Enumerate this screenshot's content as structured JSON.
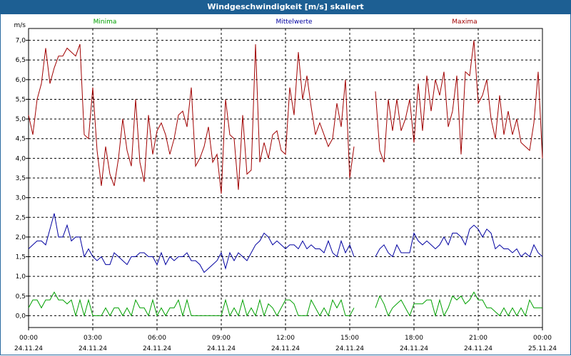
{
  "window": {
    "title": "Windgeschwindigkeit [m/s] skaliert"
  },
  "colors": {
    "minima": "#00a000",
    "mittelwerte": "#0000a0",
    "maxima": "#a00000",
    "grid": "#000000",
    "titlebar": "#1d5f93"
  },
  "chart_data": {
    "type": "line",
    "title": "Windgeschwindigkeit [m/s] skaliert",
    "ylabel": "m/s",
    "ylim": [
      -0.3,
      7.3
    ],
    "yticks": [
      "0,0",
      "0,5",
      "1,0",
      "1,5",
      "2,0",
      "2,5",
      "3,0",
      "3,5",
      "4,0",
      "4,5",
      "5,0",
      "5,5",
      "6,0",
      "6,5",
      "7,0"
    ],
    "ytick_values": [
      0,
      0.5,
      1,
      1.5,
      2,
      2.5,
      3,
      3.5,
      4,
      4.5,
      5,
      5.5,
      6,
      6.5,
      7
    ],
    "xlim": [
      0,
      24
    ],
    "xticks": [
      {
        "time": "00:00",
        "date": "24.11.24"
      },
      {
        "time": "03:00",
        "date": "24.11.24"
      },
      {
        "time": "06:00",
        "date": "24.11.24"
      },
      {
        "time": "09:00",
        "date": "24.11.24"
      },
      {
        "time": "12:00",
        "date": "24.11.24"
      },
      {
        "time": "15:00",
        "date": "24.11.24"
      },
      {
        "time": "18:00",
        "date": "24.11.24"
      },
      {
        "time": "21:00",
        "date": "24.11.24"
      },
      {
        "time": "00:00",
        "date": "25.11.24"
      }
    ],
    "legend_placement": "top",
    "grid": true,
    "series": [
      {
        "name": "Minima",
        "segments": [
          {
            "x": [
              0,
              0.2,
              0.4,
              0.6,
              0.8,
              1,
              1.2,
              1.4,
              1.6,
              1.8,
              2,
              2.2,
              2.4,
              2.6,
              2.8,
              3,
              3.2,
              3.4,
              3.6,
              3.8,
              4,
              4.2,
              4.4,
              4.6,
              4.8,
              5,
              5.2,
              5.4,
              5.6,
              5.8,
              6,
              6.2,
              6.4,
              6.6,
              6.8,
              7,
              7.2,
              7.4,
              7.6,
              7.8,
              8,
              8.2,
              8.4,
              8.6,
              8.8,
              9,
              9.2,
              9.4,
              9.6,
              9.8,
              10,
              10.2,
              10.4,
              10.6,
              10.8,
              11,
              11.2,
              11.4,
              11.6,
              11.8,
              12,
              12.2,
              12.4,
              12.6,
              12.8,
              13,
              13.2,
              13.4,
              13.6,
              13.8,
              14,
              14.2,
              14.4,
              14.6,
              14.8,
              15,
              15.2
            ],
            "y": [
              0.2,
              0.4,
              0.4,
              0.2,
              0.4,
              0.4,
              0.6,
              0.4,
              0.4,
              0.3,
              0.4,
              0.0,
              0.4,
              0.0,
              0.4,
              0.0,
              0.0,
              0.0,
              0.2,
              0.0,
              0.2,
              0.2,
              0.0,
              0.2,
              0.0,
              0.4,
              0.2,
              0.2,
              0.0,
              0.4,
              0.0,
              0.2,
              0.0,
              0.2,
              0.2,
              0.4,
              0.0,
              0.4,
              0.0,
              0.0,
              0.0,
              0.0,
              0.0,
              0.0,
              0.0,
              0.0,
              0.4,
              0.0,
              0.2,
              0.0,
              0.4,
              0.0,
              0.2,
              0.0,
              0.4,
              0.0,
              0.3,
              0.2,
              0.0,
              0.2,
              0.4,
              0.4,
              0.3,
              0.0,
              0.0,
              0.0,
              0.4,
              0.2,
              0.0,
              0.2,
              0.0,
              0.4,
              0.2,
              0.4,
              0.0,
              0.0,
              0.2
            ]
          },
          {
            "x": [
              16.2,
              16.4,
              16.6,
              16.8,
              17,
              17.2,
              17.4,
              17.6,
              17.8,
              18,
              18.2,
              18.4,
              18.6,
              18.8,
              19,
              19.2,
              19.4,
              19.6,
              19.8,
              20,
              20.2,
              20.4,
              20.6,
              20.8,
              21,
              21.2,
              21.4,
              21.6,
              21.8,
              22,
              22.2,
              22.4,
              22.6,
              22.8,
              23,
              23.2,
              23.4,
              23.6,
              23.8,
              24
            ],
            "y": [
              0.2,
              0.5,
              0.3,
              0.0,
              0.2,
              0.3,
              0.4,
              0.2,
              0.0,
              0.3,
              0.3,
              0.3,
              0.4,
              0.4,
              0.0,
              0.4,
              0.0,
              0.2,
              0.5,
              0.4,
              0.5,
              0.3,
              0.4,
              0.6,
              0.4,
              0.4,
              0.2,
              0.2,
              0.1,
              0.0,
              0.2,
              0.0,
              0.2,
              0.0,
              0.2,
              0.0,
              0.4,
              0.2,
              0.2,
              0.2
            ]
          }
        ]
      },
      {
        "name": "Mittelwerte",
        "segments": [
          {
            "x": [
              0,
              0.2,
              0.4,
              0.6,
              0.8,
              1,
              1.2,
              1.4,
              1.6,
              1.8,
              2,
              2.2,
              2.4,
              2.6,
              2.8,
              3,
              3.2,
              3.4,
              3.6,
              3.8,
              4,
              4.2,
              4.4,
              4.6,
              4.8,
              5,
              5.2,
              5.4,
              5.6,
              5.8,
              6,
              6.2,
              6.4,
              6.6,
              6.8,
              7,
              7.2,
              7.4,
              7.6,
              7.8,
              8,
              8.2,
              8.4,
              8.6,
              8.8,
              9,
              9.2,
              9.4,
              9.6,
              9.8,
              10,
              10.2,
              10.4,
              10.6,
              10.8,
              11,
              11.2,
              11.4,
              11.6,
              11.8,
              12,
              12.2,
              12.4,
              12.6,
              12.8,
              13,
              13.2,
              13.4,
              13.6,
              13.8,
              14,
              14.2,
              14.4,
              14.6,
              14.8,
              15,
              15.2
            ],
            "y": [
              1.7,
              1.8,
              1.9,
              1.9,
              1.8,
              2.2,
              2.6,
              2.0,
              2.0,
              2.3,
              1.9,
              2.0,
              2.0,
              1.5,
              1.7,
              1.5,
              1.4,
              1.5,
              1.3,
              1.3,
              1.6,
              1.5,
              1.4,
              1.3,
              1.5,
              1.5,
              1.6,
              1.6,
              1.5,
              1.5,
              1.3,
              1.6,
              1.3,
              1.5,
              1.4,
              1.5,
              1.5,
              1.6,
              1.4,
              1.4,
              1.3,
              1.1,
              1.2,
              1.3,
              1.4,
              1.6,
              1.2,
              1.6,
              1.4,
              1.6,
              1.5,
              1.4,
              1.6,
              1.8,
              1.9,
              2.1,
              2.0,
              1.8,
              1.9,
              1.8,
              1.7,
              1.8,
              1.8,
              1.7,
              1.9,
              1.7,
              1.8,
              1.7,
              1.7,
              1.6,
              1.9,
              1.6,
              1.5,
              1.9,
              1.6,
              1.8,
              1.5
            ]
          },
          {
            "x": [
              16.2,
              16.4,
              16.6,
              16.8,
              17,
              17.2,
              17.4,
              17.6,
              17.8,
              18,
              18.2,
              18.4,
              18.6,
              18.8,
              19,
              19.2,
              19.4,
              19.6,
              19.8,
              20,
              20.2,
              20.4,
              20.6,
              20.8,
              21,
              21.2,
              21.4,
              21.6,
              21.8,
              22,
              22.2,
              22.4,
              22.6,
              22.8,
              23,
              23.2,
              23.4,
              23.6,
              23.8,
              24
            ],
            "y": [
              1.5,
              1.7,
              1.8,
              1.6,
              1.5,
              1.8,
              1.6,
              1.6,
              1.6,
              2.1,
              1.9,
              1.8,
              1.9,
              1.8,
              1.7,
              1.8,
              2.0,
              1.8,
              2.1,
              2.1,
              2.0,
              1.8,
              2.2,
              2.3,
              2.2,
              2.0,
              2.2,
              2.1,
              1.7,
              1.8,
              1.7,
              1.7,
              1.6,
              1.7,
              1.5,
              1.6,
              1.5,
              1.8,
              1.6,
              1.5
            ]
          }
        ]
      },
      {
        "name": "Maxima",
        "segments": [
          {
            "x": [
              0,
              0.2,
              0.4,
              0.6,
              0.8,
              1,
              1.2,
              1.4,
              1.6,
              1.8,
              2,
              2.2,
              2.4,
              2.6,
              2.8,
              3,
              3.2,
              3.4,
              3.6,
              3.8,
              4,
              4.2,
              4.4,
              4.6,
              4.8,
              5,
              5.2,
              5.4,
              5.6,
              5.8,
              6,
              6.2,
              6.4,
              6.6,
              6.8,
              7,
              7.2,
              7.4,
              7.6,
              7.8,
              8,
              8.2,
              8.4,
              8.6,
              8.8,
              9,
              9.2,
              9.4,
              9.6,
              9.8,
              10,
              10.2,
              10.4,
              10.6,
              10.8,
              11,
              11.2,
              11.4,
              11.6,
              11.8,
              12,
              12.2,
              12.4,
              12.6,
              12.8,
              13,
              13.2,
              13.4,
              13.6,
              13.8,
              14,
              14.2,
              14.4,
              14.6,
              14.8,
              15,
              15.2
            ],
            "y": [
              5.1,
              4.6,
              5.5,
              5.9,
              6.8,
              5.9,
              6.3,
              6.6,
              6.6,
              6.8,
              6.7,
              6.6,
              6.9,
              4.6,
              4.5,
              5.8,
              4.2,
              3.3,
              4.3,
              3.6,
              3.3,
              4.0,
              5.0,
              4.2,
              3.8,
              5.5,
              3.9,
              3.4,
              5.1,
              4.1,
              4.7,
              4.9,
              4.6,
              4.1,
              4.5,
              5.1,
              5.2,
              4.8,
              5.8,
              3.8,
              4.0,
              4.3,
              4.8,
              3.9,
              4.1,
              3.1,
              5.5,
              4.6,
              4.5,
              3.2,
              5.1,
              3.6,
              3.7,
              6.9,
              3.9,
              4.4,
              4.0,
              4.6,
              4.7,
              4.2,
              4.1,
              5.8,
              5.1,
              6.7,
              5.5,
              6.1,
              5.3,
              4.6,
              4.9,
              4.6,
              4.3,
              4.5,
              5.4,
              4.8,
              6.0,
              3.5,
              4.3
            ]
          },
          {
            "x": [
              16.2,
              16.4,
              16.6,
              16.8,
              17,
              17.2,
              17.4,
              17.6,
              17.8,
              18,
              18.2,
              18.4,
              18.6,
              18.8,
              19,
              19.2,
              19.4,
              19.6,
              19.8,
              20,
              20.2,
              20.4,
              20.6,
              20.8,
              21,
              21.2,
              21.4,
              21.6,
              21.8,
              22,
              22.2,
              22.4,
              22.6,
              22.8,
              23,
              23.2,
              23.4,
              23.6,
              23.8,
              24
            ],
            "y": [
              5.7,
              4.2,
              3.9,
              5.5,
              4.7,
              5.5,
              4.7,
              5.0,
              5.5,
              4.4,
              5.9,
              4.7,
              6.1,
              5.2,
              6.0,
              5.6,
              6.2,
              4.8,
              5.2,
              6.1,
              4.1,
              6.2,
              6.1,
              7.0,
              5.4,
              5.6,
              6.0,
              5.0,
              4.5,
              5.6,
              4.6,
              5.2,
              4.6,
              5.0,
              4.4,
              4.3,
              4.2,
              4.9,
              6.2,
              4.0
            ]
          }
        ]
      }
    ]
  }
}
